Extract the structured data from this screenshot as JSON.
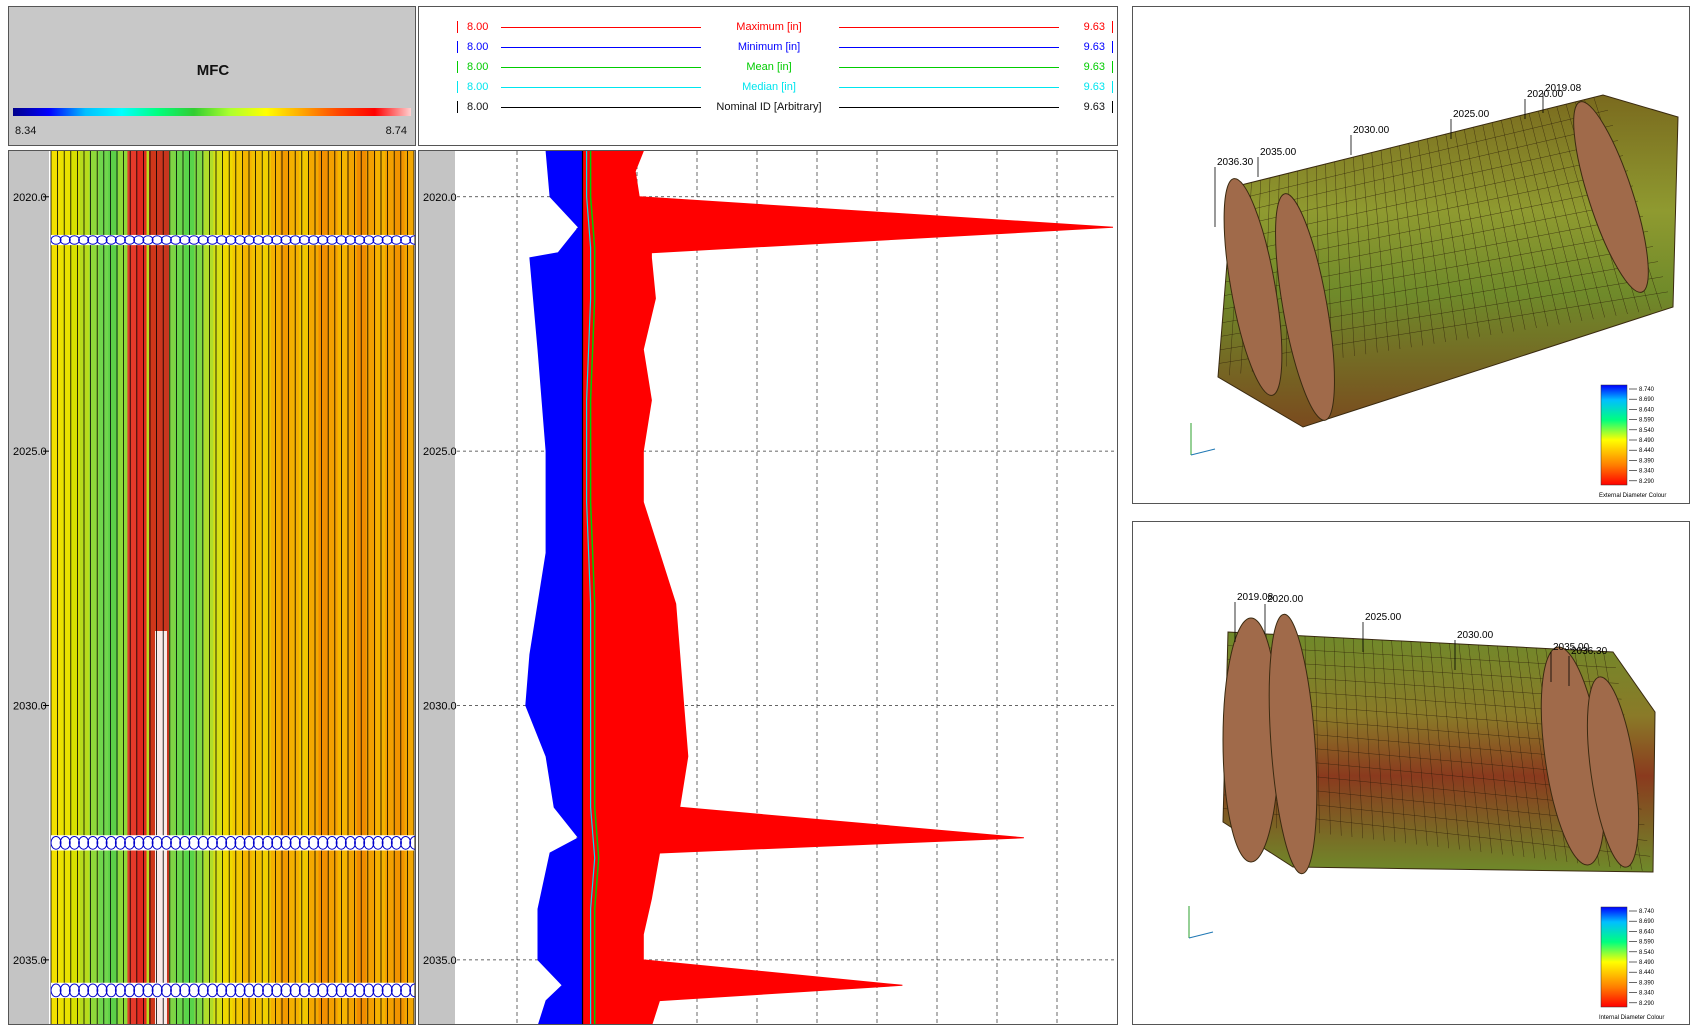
{
  "mfc_panel": {
    "title": "MFC",
    "colorbar_min": "8.34",
    "colorbar_max": "8.74"
  },
  "legend": [
    {
      "min": "8.00",
      "name": "Maximum [in]",
      "max": "9.63",
      "color": "#ff0000"
    },
    {
      "min": "8.00",
      "name": "Minimum [in]",
      "max": "9.63",
      "color": "#0000ff"
    },
    {
      "min": "8.00",
      "name": "Mean [in]",
      "max": "9.63",
      "color": "#00cc00"
    },
    {
      "min": "8.00",
      "name": "Median [in]",
      "max": "9.63",
      "color": "#00e5ee"
    },
    {
      "min": "8.00",
      "name": "Nominal ID [Arbitrary]",
      "max": "9.63",
      "color": "#000000"
    }
  ],
  "chart_data": {
    "type": "area",
    "depth_axis": {
      "ticks": [
        "2020.0",
        "2025.0",
        "2030.0",
        "2035.0"
      ],
      "range": [
        2019.1,
        2036.3
      ],
      "direction": "down"
    },
    "x_range": [
      8.0,
      9.63
    ],
    "grid": true,
    "series": [
      {
        "name": "Maximum [in]",
        "color": "#ff0000",
        "depth": [
          2019.1,
          2019.5,
          2020.0,
          2020.6,
          2021.1,
          2021.2,
          2022.0,
          2023.0,
          2024.0,
          2025.0,
          2026.0,
          2027.0,
          2028.0,
          2029.0,
          2030.0,
          2031.0,
          2032.0,
          2032.6,
          2032.9,
          2033.8,
          2034.5,
          2035.0,
          2035.5,
          2035.8,
          2036.3
        ],
        "values": [
          8.46,
          8.44,
          8.45,
          9.62,
          8.48,
          8.48,
          8.49,
          8.46,
          8.48,
          8.46,
          8.46,
          8.5,
          8.54,
          8.55,
          8.56,
          8.57,
          8.55,
          9.4,
          8.5,
          8.48,
          8.46,
          8.46,
          9.1,
          8.5,
          8.48
        ]
      },
      {
        "name": "Minimum [in]",
        "color": "#0000ff",
        "depth": [
          2019.1,
          2020.0,
          2020.6,
          2021.1,
          2021.2,
          2023.0,
          2025.0,
          2027.0,
          2029.0,
          2030.0,
          2031.0,
          2032.0,
          2032.6,
          2032.9,
          2034.0,
          2035.0,
          2035.5,
          2035.8,
          2036.3
        ],
        "values": [
          8.22,
          8.23,
          8.3,
          8.25,
          8.18,
          8.2,
          8.22,
          8.22,
          8.18,
          8.17,
          8.22,
          8.24,
          8.3,
          8.23,
          8.2,
          8.2,
          8.26,
          8.22,
          8.2
        ]
      },
      {
        "name": "Mean [in]",
        "color": "#00cc00",
        "depth": [
          2019.1,
          2020.0,
          2021.0,
          2022.0,
          2024.0,
          2026.0,
          2028.0,
          2030.0,
          2032.0,
          2033.0,
          2034.0,
          2035.0,
          2036.3
        ],
        "values": [
          8.33,
          8.33,
          8.34,
          8.34,
          8.33,
          8.33,
          8.34,
          8.34,
          8.34,
          8.35,
          8.34,
          8.34,
          8.34
        ]
      },
      {
        "name": "Median [in]",
        "color": "#00e5ee",
        "depth": [
          2019.1,
          2020.0,
          2021.0,
          2022.0,
          2024.0,
          2026.0,
          2028.0,
          2030.0,
          2032.0,
          2033.0,
          2034.0,
          2035.0,
          2036.3
        ],
        "values": [
          8.32,
          8.32,
          8.33,
          8.33,
          8.32,
          8.32,
          8.33,
          8.33,
          8.33,
          8.34,
          8.33,
          8.33,
          8.33
        ]
      },
      {
        "name": "Nominal ID [Arbitrary]",
        "color": "#000000",
        "depth": [
          2019.1,
          2036.3
        ],
        "values": [
          8.31,
          8.31
        ]
      }
    ]
  },
  "view_top": {
    "labels": [
      "2036.30",
      "2035.00",
      "2030.00",
      "2025.00",
      "2020.00",
      "2019.08"
    ],
    "scale_values": [
      "8.740",
      "8.690",
      "8.640",
      "8.590",
      "8.540",
      "8.490",
      "8.440",
      "8.390",
      "8.340",
      "8.290"
    ],
    "scale_caption": "External Diameter Colour"
  },
  "view_bottom": {
    "labels": [
      "2019.08",
      "2020.00",
      "2025.00",
      "2030.00",
      "2035.00",
      "2036.30"
    ],
    "scale_values": [
      "8.740",
      "8.690",
      "8.640",
      "8.590",
      "8.540",
      "8.490",
      "8.440",
      "8.390",
      "8.340",
      "8.290"
    ],
    "scale_caption": "Internal Diameter Colour"
  }
}
